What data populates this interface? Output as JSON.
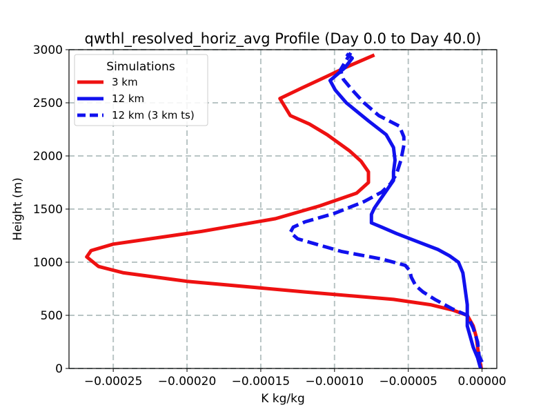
{
  "chart_data": {
    "type": "line",
    "title": "qwthl_resolved_horiz_avg Profile (Day 0.0 to Day 40.0)",
    "xlabel": "K kg/kg",
    "ylabel": "Height (m)",
    "xlim": [
      -0.00028,
      1e-05
    ],
    "ylim": [
      0,
      3000
    ],
    "x_ticks": [
      -0.00025,
      -0.0002,
      -0.00015,
      -0.0001,
      -5e-05,
      0.0
    ],
    "x_tick_labels": [
      "−0.00025",
      "−0.00020",
      "−0.00015",
      "−0.00010",
      "−0.00005",
      "0.00000"
    ],
    "y_ticks": [
      0,
      500,
      1000,
      1500,
      2000,
      2500,
      3000
    ],
    "y_tick_labels": [
      "0",
      "500",
      "1000",
      "1500",
      "2000",
      "2500",
      "3000"
    ],
    "grid": true,
    "legend": {
      "title": "Simulations",
      "position": "top-left",
      "entries": [
        "3 km",
        "12 km",
        "12 km (3 km ts)"
      ]
    },
    "series": [
      {
        "name": "3 km",
        "color": "#ee1111",
        "style": "solid",
        "points": [
          [
            -5e-07,
            0
          ],
          [
            -2e-06,
            100
          ],
          [
            -3e-06,
            200
          ],
          [
            -4e-06,
            300
          ],
          [
            -6e-06,
            400
          ],
          [
            -1e-05,
            500
          ],
          [
            -2e-05,
            550
          ],
          [
            -3.5e-05,
            600
          ],
          [
            -6e-05,
            650
          ],
          [
            -0.00012,
            720
          ],
          [
            -0.0002,
            820
          ],
          [
            -0.000243,
            900
          ],
          [
            -0.00026,
            960
          ],
          [
            -0.000268,
            1050
          ],
          [
            -0.000265,
            1110
          ],
          [
            -0.00025,
            1170
          ],
          [
            -0.00019,
            1290
          ],
          [
            -0.00014,
            1410
          ],
          [
            -0.00011,
            1530
          ],
          [
            -8.5e-05,
            1650
          ],
          [
            -7.7e-05,
            1750
          ],
          [
            -7.7e-05,
            1850
          ],
          [
            -8.2e-05,
            1950
          ],
          [
            -9e-05,
            2050
          ],
          [
            -0.000105,
            2200
          ],
          [
            -0.000117,
            2300
          ],
          [
            -0.00013,
            2380
          ],
          [
            -0.000137,
            2540
          ],
          [
            -0.000122,
            2640
          ],
          [
            -0.000105,
            2750
          ],
          [
            -9.3e-05,
            2830
          ],
          [
            -7.3e-05,
            2950
          ]
        ]
      },
      {
        "name": "12 km",
        "color": "#1111ee",
        "style": "solid",
        "points": [
          [
            -1e-06,
            0
          ],
          [
            -3e-06,
            100
          ],
          [
            -6e-06,
            200
          ],
          [
            -8e-06,
            300
          ],
          [
            -1e-05,
            400
          ],
          [
            -1e-05,
            500
          ],
          [
            -1e-05,
            600
          ],
          [
            -1.1e-05,
            700
          ],
          [
            -1.2e-05,
            800
          ],
          [
            -1.3e-05,
            900
          ],
          [
            -1.6e-05,
            1000
          ],
          [
            -2.2e-05,
            1060
          ],
          [
            -3e-05,
            1120
          ],
          [
            -4.5e-05,
            1200
          ],
          [
            -5.8e-05,
            1270
          ],
          [
            -6.8e-05,
            1330
          ],
          [
            -7.5e-05,
            1370
          ],
          [
            -7.5e-05,
            1450
          ],
          [
            -7.3e-05,
            1510
          ],
          [
            -7e-05,
            1570
          ],
          [
            -6.6e-05,
            1650
          ],
          [
            -6.3e-05,
            1710
          ],
          [
            -6e-05,
            1770
          ],
          [
            -6e-05,
            1850
          ],
          [
            -5.9e-05,
            1960
          ],
          [
            -6e-05,
            2080
          ],
          [
            -6.5e-05,
            2200
          ],
          [
            -7.7e-05,
            2330
          ],
          [
            -9.2e-05,
            2500
          ],
          [
            -9.95e-05,
            2620
          ],
          [
            -0.000103,
            2710
          ],
          [
            -9.3e-05,
            2830
          ],
          [
            -8.8e-05,
            2920
          ],
          [
            -9.2e-05,
            2960
          ]
        ]
      },
      {
        "name": "12 km (3 km ts)",
        "color": "#1111ee",
        "style": "dashed",
        "points": [
          [
            0,
            60
          ],
          [
            -2e-06,
            120
          ],
          [
            -3e-06,
            250
          ],
          [
            -6e-06,
            380
          ],
          [
            -1e-05,
            500
          ],
          [
            -2e-05,
            560
          ],
          [
            -3.2e-05,
            650
          ],
          [
            -4e-05,
            720
          ],
          [
            -4.5e-05,
            780
          ],
          [
            -4.8e-05,
            860
          ],
          [
            -4.9e-05,
            920
          ],
          [
            -5.2e-05,
            970
          ],
          [
            -6.8e-05,
            1030
          ],
          [
            -9.5e-05,
            1100
          ],
          [
            -0.000115,
            1180
          ],
          [
            -0.000125,
            1220
          ],
          [
            -0.00013,
            1280
          ],
          [
            -0.000128,
            1330
          ],
          [
            -0.00012,
            1380
          ],
          [
            -0.0001,
            1460
          ],
          [
            -8e-05,
            1570
          ],
          [
            -6.8e-05,
            1660
          ],
          [
            -6.2e-05,
            1740
          ],
          [
            -5.8e-05,
            1830
          ],
          [
            -5.5e-05,
            1960
          ],
          [
            -5.3e-05,
            2100
          ],
          [
            -5.3e-05,
            2180
          ],
          [
            -5.6e-05,
            2280
          ],
          [
            -7e-05,
            2380
          ],
          [
            -8e-05,
            2500
          ],
          [
            -8.8e-05,
            2620
          ],
          [
            -9.4e-05,
            2720
          ],
          [
            -9.6e-05,
            2810
          ],
          [
            -9.3e-05,
            2880
          ],
          [
            -8.9e-05,
            2970
          ]
        ]
      }
    ]
  }
}
